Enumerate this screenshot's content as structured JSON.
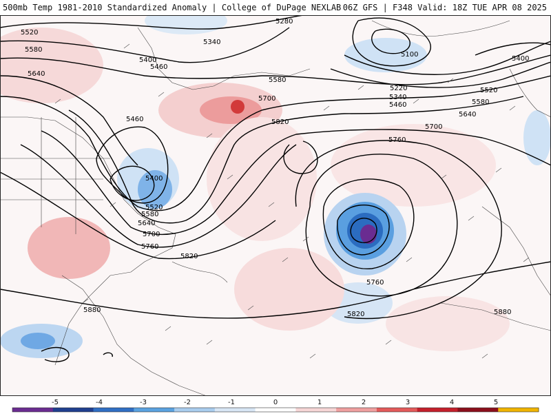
{
  "header": {
    "left_title": "500mb Temp 1981-2010 Standardized Anomaly | College of DuPage NEXLAB",
    "right_title": "06Z GFS | F348 Valid: 18Z TUE APR 08 2025"
  },
  "contour_labels": [
    "5280",
    "5340",
    "5100",
    "5220",
    "5340",
    "5460",
    "5400",
    "5520",
    "5520",
    "5580",
    "5580",
    "5400",
    "5460",
    "5640",
    "5580",
    "5700",
    "5640",
    "5700",
    "5760",
    "5820",
    "5460",
    "5400",
    "5520",
    "5580",
    "5640",
    "5700",
    "5760",
    "5820",
    "5760",
    "5820",
    "5880",
    "5880"
  ],
  "colorbar": {
    "ticks": [
      "-5",
      "-4",
      "-3",
      "-2",
      "-1",
      "0",
      "1",
      "2",
      "3",
      "4",
      "5"
    ],
    "colors": [
      "#6a2c91",
      "#1f3f8f",
      "#2f6fc4",
      "#5aa2e0",
      "#a9cdee",
      "#d8e6f5",
      "#ffffff",
      "#f6d6d6",
      "#ef9f9f",
      "#e35a5a",
      "#c41f2b",
      "#8b0f1c",
      "#f0b400"
    ]
  }
}
